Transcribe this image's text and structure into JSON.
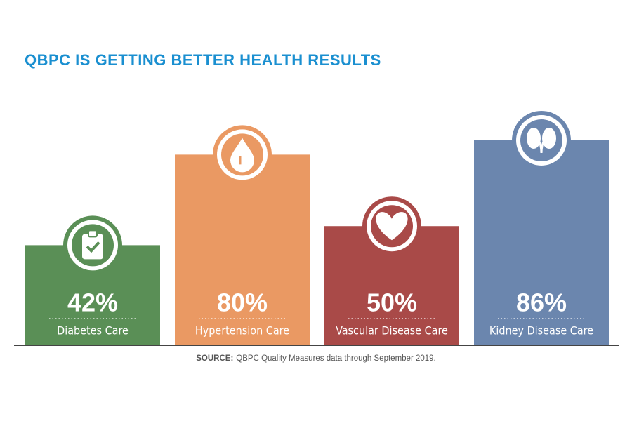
{
  "chart_data": {
    "type": "bar",
    "title": "QBPC IS GETTING BETTER HEALTH RESULTS",
    "categories": [
      "Diabetes Care",
      "Hypertension Care",
      "Vascular Disease Care",
      "Kidney Disease Care"
    ],
    "values": [
      42,
      80,
      50,
      86
    ],
    "value_labels": [
      "42%",
      "80%",
      "50%",
      "86%"
    ],
    "colors": [
      "#5a8f56",
      "#ea9963",
      "#a94a48",
      "#6b86ae"
    ],
    "source_label": "SOURCE:",
    "source_text": "QBPC Quality Measures data through September 2019."
  }
}
